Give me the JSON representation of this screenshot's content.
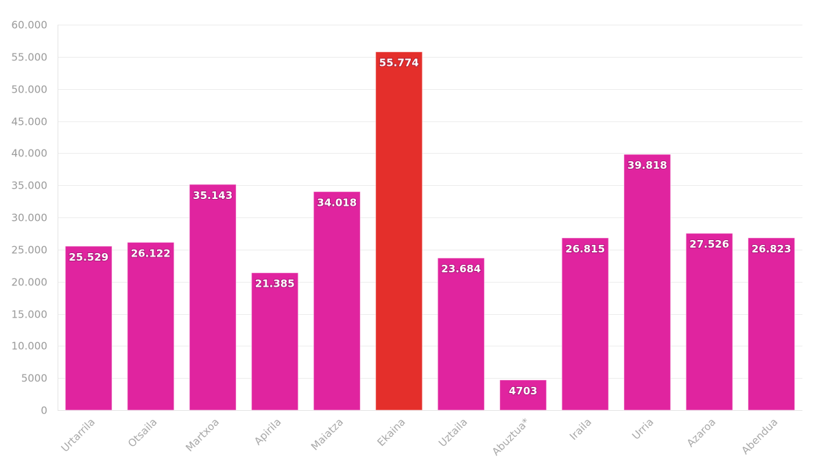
{
  "chart_data": {
    "type": "bar",
    "title": "",
    "xlabel": "",
    "ylabel": "",
    "categories": [
      "Urtarrila",
      "Otsaila",
      "Martxoa",
      "Apirila",
      "Maiatza",
      "Ekaina",
      "Uztaila",
      "Abuztua*",
      "Iraila",
      "Urria",
      "Azaroa",
      "Abendua"
    ],
    "values": [
      25529,
      26122,
      35143,
      21385,
      34018,
      55774,
      23684,
      4703,
      26815,
      39818,
      27526,
      26823
    ],
    "value_labels": [
      "25.529",
      "26.122",
      "35.143",
      "21.385",
      "34.018",
      "55.774",
      "23.684",
      "4703",
      "26.815",
      "39.818",
      "27.526",
      "26.823"
    ],
    "y_ticks": [
      0,
      5000,
      10000,
      15000,
      20000,
      25000,
      30000,
      35000,
      40000,
      45000,
      50000,
      55000,
      60000
    ],
    "y_tick_labels": [
      "0",
      "5000",
      "10.000",
      "15.000",
      "20.000",
      "25.000",
      "30.000",
      "35.000",
      "40.000",
      "45.000",
      "50.000",
      "55.000",
      "60.000"
    ],
    "ylim": [
      0,
      60000
    ],
    "grid": true,
    "colors": {
      "default": "#e0249f",
      "highlight": "#e42f2b"
    },
    "highlight_index": 5
  }
}
